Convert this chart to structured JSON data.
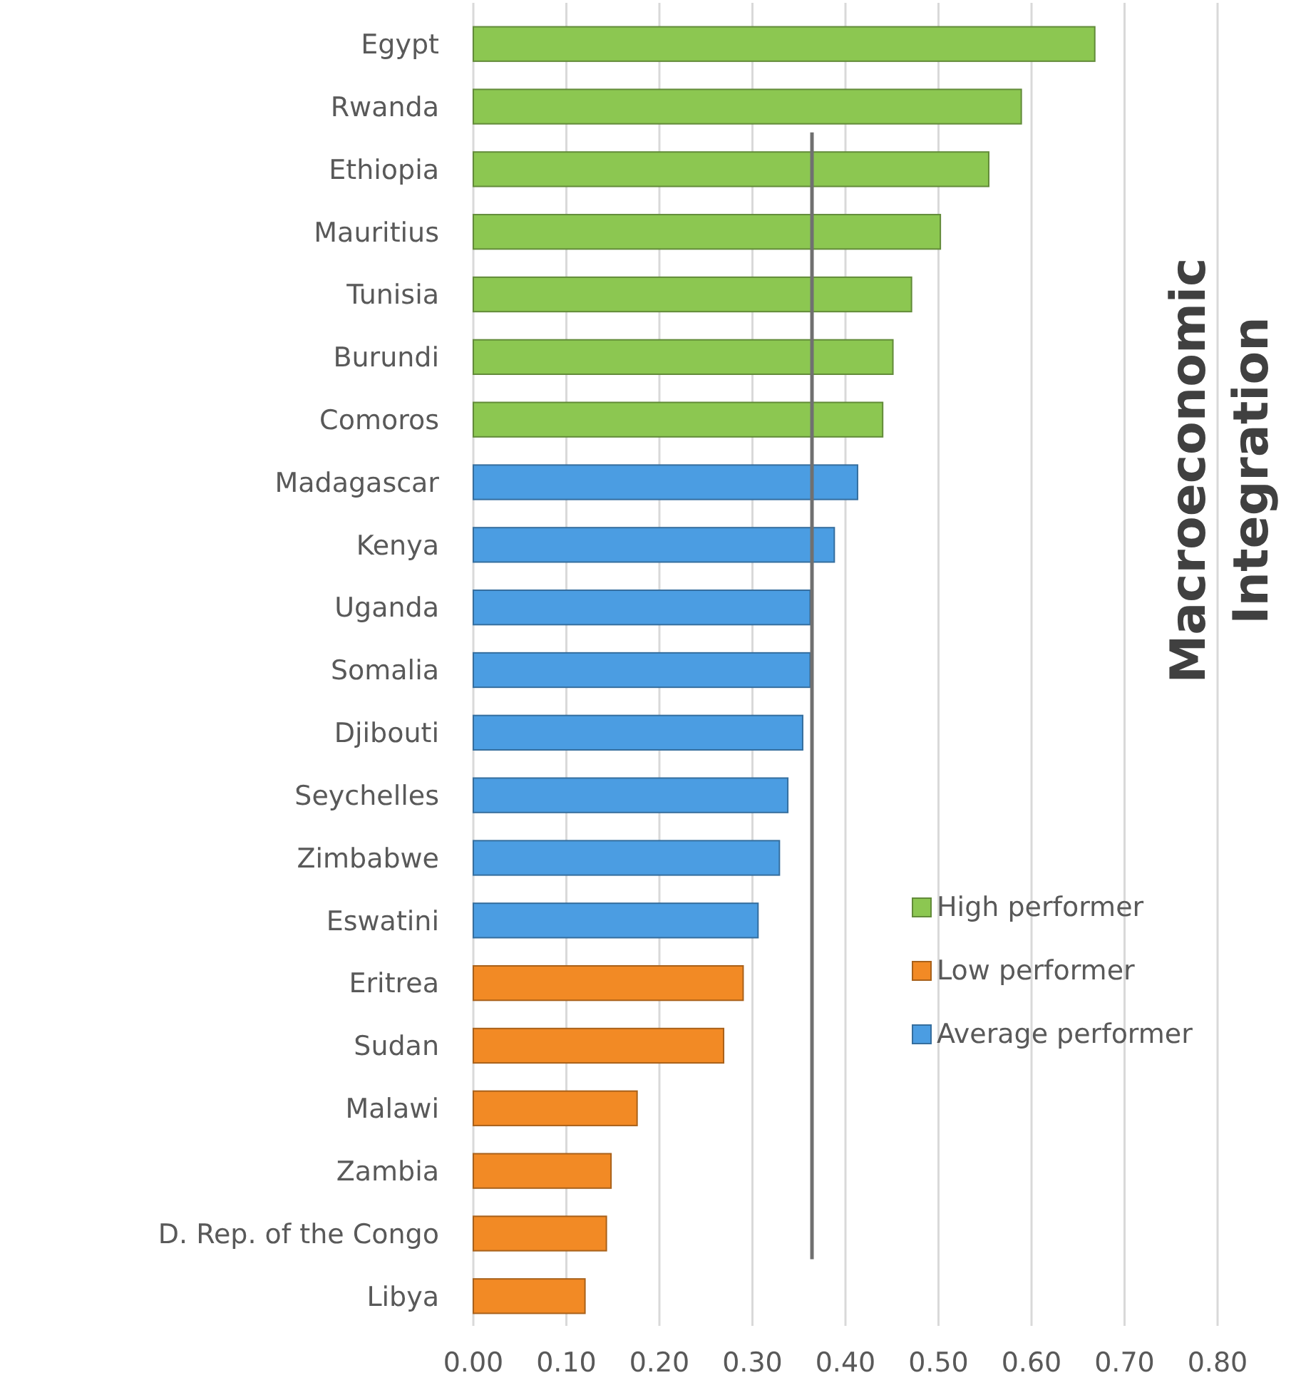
{
  "chart_data": {
    "type": "bar",
    "orientation": "horizontal",
    "title": "Macroeconomic Integration",
    "categories": [
      "Egypt",
      "Rwanda",
      "Ethiopia",
      "Mauritius",
      "Tunisia",
      "Burundi",
      "Comoros",
      "Madagascar",
      "Kenya",
      "Uganda",
      "Somalia",
      "Djibouti",
      "Seychelles",
      "Zimbabwe",
      "Eswatini",
      "Eritrea",
      "Sudan",
      "Malawi",
      "Zambia",
      "D. Rep. of the Congo",
      "Libya"
    ],
    "series": [
      {
        "name": "High performer",
        "color": "#8cc751",
        "values": [
          0.668,
          0.589,
          0.554,
          0.502,
          0.471,
          0.451,
          0.44,
          null,
          null,
          null,
          null,
          null,
          null,
          null,
          null,
          null,
          null,
          null,
          null,
          null,
          null
        ]
      },
      {
        "name": "Low performer",
        "color": "#f28a25",
        "values": [
          null,
          null,
          null,
          null,
          null,
          null,
          null,
          null,
          null,
          null,
          null,
          null,
          null,
          null,
          null,
          0.29,
          0.269,
          0.176,
          0.148,
          0.143,
          0.12
        ]
      },
      {
        "name": "Average performer",
        "color": "#4b9de2",
        "values": [
          null,
          null,
          null,
          null,
          null,
          null,
          null,
          0.413,
          0.388,
          0.362,
          0.362,
          0.354,
          0.338,
          0.329,
          0.306,
          null,
          null,
          null,
          null,
          null,
          null
        ]
      }
    ],
    "xlim": [
      0,
      0.8
    ],
    "xticks": [
      {
        "value": 0,
        "label": "0.00"
      },
      {
        "value": 0.1,
        "label": "0.10"
      },
      {
        "value": 0.2,
        "label": "0.20"
      },
      {
        "value": 0.3,
        "label": "0.30"
      },
      {
        "value": 0.4,
        "label": "0.40"
      },
      {
        "value": 0.5,
        "label": "0.50"
      },
      {
        "value": 0.6,
        "label": "0.60"
      },
      {
        "value": 0.7,
        "label": "0.70"
      },
      {
        "value": 0.8,
        "label": "0.80"
      }
    ],
    "grid": "x",
    "legend": "right",
    "ref_lines": [
      {
        "axis": "x",
        "value": 0.364,
        "color": "#707070"
      }
    ]
  }
}
